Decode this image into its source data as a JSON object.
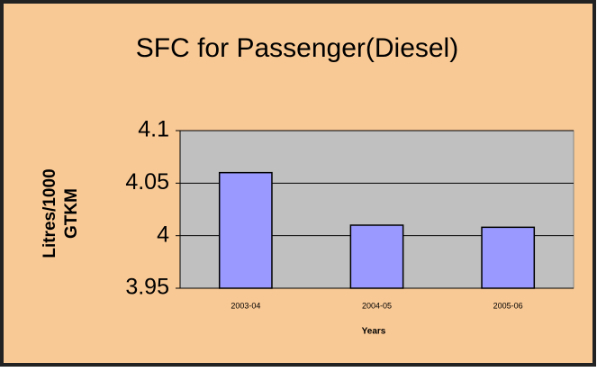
{
  "chart_data": {
    "type": "bar",
    "title": "SFC for Passenger(Diesel)",
    "x_label": "Years",
    "y_label": "Litres/1000 GTKM",
    "categories": [
      "2003-04",
      "2004-05",
      "2005-06"
    ],
    "values": [
      4.06,
      4.01,
      4.008
    ],
    "color": "#9999ff",
    "ylim": [
      3.95,
      4.1
    ],
    "yticks": [
      3.95,
      4,
      4.05,
      4.1
    ],
    "grid": true
  }
}
